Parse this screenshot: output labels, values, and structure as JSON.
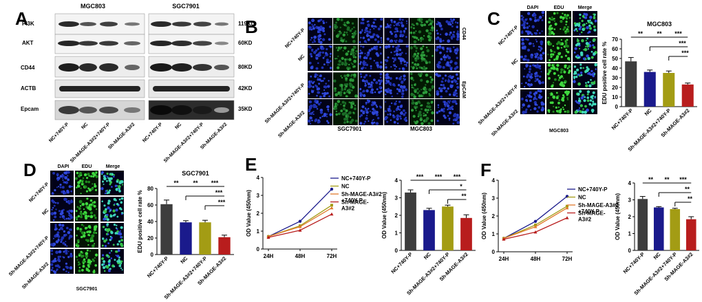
{
  "panels": {
    "a": "A",
    "b": "B",
    "c": "C",
    "d": "D",
    "e": "E",
    "f": "F"
  },
  "A": {
    "cell_lines": [
      "MGC803",
      "SGC7901"
    ],
    "proteins": [
      "PI3K",
      "AKT",
      "CD44",
      "ACTB",
      "Epcam"
    ],
    "sizes": [
      "119KD",
      "60KD",
      "80KD",
      "42KD",
      "35KD"
    ],
    "lanes": [
      "NC+740Y-P",
      "NC",
      "Sh-MAGE-A3#2+740Y-P",
      "Sh-MAGE-A3#2"
    ]
  },
  "B": {
    "rows": [
      "NC+740Y-P",
      "NC",
      "Sh-MAGE-A3#2+740Y-P",
      "Sh-MAGE-A3#2"
    ],
    "markers": [
      "CD44",
      "EpCAM"
    ],
    "cell_lines": [
      "SGC7901",
      "MGC803"
    ]
  },
  "C": {
    "headers": [
      "DAPI",
      "EDU",
      "Merge"
    ],
    "rows": [
      "NC+740Y-P",
      "NC",
      "Sh-MAGE-A3#2+740Y-P",
      "Sh-MAGE-A3#2"
    ],
    "cell_line": "MGC803",
    "chart_title": "MGC803",
    "sig": [
      "**",
      "**",
      "***",
      "***",
      "***"
    ]
  },
  "D": {
    "headers": [
      "DAPI",
      "EDU",
      "Merge"
    ],
    "rows": [
      "NC+740Y-P",
      "NC",
      "Sh-MAGE-A3#2+740Y-P",
      "Sh-MAGE-A3#2"
    ],
    "cell_line": "SGC7901",
    "chart_title": "SGC7901",
    "sig": [
      "**",
      "**",
      "***",
      "***",
      "***"
    ]
  },
  "E": {
    "line_sig": [],
    "bar_sig": [
      "***",
      "***",
      "***",
      "*",
      "**"
    ]
  },
  "F": {
    "bar_sig": [
      "**",
      "**",
      "***",
      "**",
      "**"
    ]
  },
  "colors": {
    "dark": "#3d3d3d",
    "blue": "#1a1a8c",
    "olive": "#a39c14",
    "red": "#b81d1d",
    "orange": "#e07a2c",
    "purple": "#7a3a8c"
  },
  "chart_data": [
    {
      "type": "bar",
      "panel": "C",
      "title": "MGC803",
      "ylabel": "EDU positive cell rate %",
      "categories": [
        "NC+740Y-P",
        "NC",
        "Sh-MAGE-A3#2+740Y-P",
        "Sh-MAGE-A3#2"
      ],
      "values": [
        47,
        36,
        35,
        23
      ],
      "errors": [
        4,
        2,
        2,
        1.5
      ],
      "yticks": [
        0,
        10,
        20,
        30,
        40,
        50,
        60,
        70
      ],
      "ylim": [
        0,
        70
      ]
    },
    {
      "type": "bar",
      "panel": "D",
      "title": "SGC7901",
      "ylabel": "EDU positive cell rate %",
      "categories": [
        "NC+740Y-P",
        "NC",
        "Sh-MAGE-A3#2+740Y-P",
        "Sh-MAGE-A3#2"
      ],
      "values": [
        61,
        39,
        39,
        21
      ],
      "errors": [
        5,
        2,
        2.5,
        2.5
      ],
      "yticks": [
        0,
        20,
        40,
        60,
        80
      ],
      "ylim": [
        0,
        80
      ]
    },
    {
      "type": "line",
      "panel": "E",
      "ylabel": "OD Value (450nm)",
      "x": [
        "24H",
        "48H",
        "72H"
      ],
      "yticks": [
        0,
        1,
        2,
        3,
        4
      ],
      "ylim": [
        0,
        4
      ],
      "series": [
        {
          "name": "NC+740Y-P",
          "values": [
            0.7,
            1.55,
            3.35
          ]
        },
        {
          "name": "NC",
          "values": [
            0.7,
            1.3,
            2.45
          ]
        },
        {
          "name": "Sh-MAGE-A3#2\n+740Y-P",
          "values": [
            0.7,
            1.25,
            2.3
          ]
        },
        {
          "name": "Sh-MAGE-\nA3#2",
          "values": [
            0.65,
            1.05,
            1.95
          ]
        }
      ]
    },
    {
      "type": "bar",
      "panel": "E",
      "ylabel": "OD Value (450nm)",
      "categories": [
        "NC+740Y-P",
        "NC",
        "Sh-MAGE-A3#2+740Y-P",
        "Sh-MAGE-A3#2"
      ],
      "values": [
        3.3,
        2.3,
        2.5,
        1.85
      ],
      "errors": [
        0.15,
        0.1,
        0.08,
        0.18
      ],
      "yticks": [
        0,
        1,
        2,
        3,
        4
      ],
      "ylim": [
        0,
        4
      ]
    },
    {
      "type": "line",
      "panel": "F",
      "ylabel": "OD Value (450nm)",
      "x": [
        "24H",
        "48H",
        "72H"
      ],
      "yticks": [
        0,
        1,
        2,
        3,
        4
      ],
      "ylim": [
        0,
        4
      ],
      "series": [
        {
          "name": "NC+740Y-P",
          "values": [
            0.75,
            1.7,
            3.1
          ]
        },
        {
          "name": "NC",
          "values": [
            0.75,
            1.5,
            2.55
          ]
        },
        {
          "name": "Sh-MAGE-A3#2\n+740Y-P",
          "values": [
            0.75,
            1.4,
            2.45
          ]
        },
        {
          "name": "Sh-MAGE-\nA3#2",
          "values": [
            0.7,
            1.1,
            1.9
          ]
        }
      ]
    },
    {
      "type": "bar",
      "panel": "F",
      "ylabel": "OD Value (450nm)",
      "categories": [
        "NC+740Y-P",
        "NC",
        "Sh-MAGE-A3#2+740Y-P",
        "Sh-MAGE-A3#2"
      ],
      "values": [
        3.05,
        2.55,
        2.45,
        1.85
      ],
      "errors": [
        0.15,
        0.05,
        0.05,
        0.15
      ],
      "yticks": [
        0,
        1,
        2,
        3,
        4
      ],
      "ylim": [
        0,
        4
      ]
    }
  ]
}
